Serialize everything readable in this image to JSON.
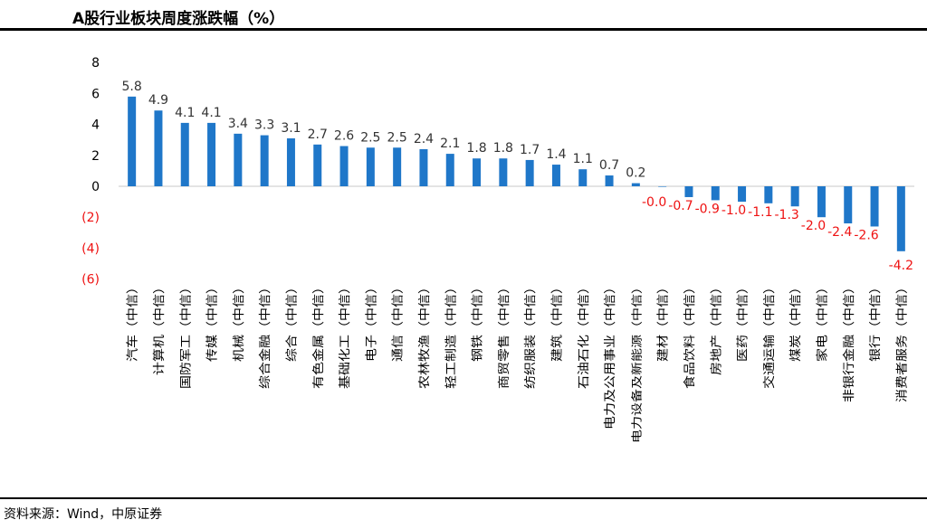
{
  "title": "A股行业板块周度涨跌幅（%）",
  "source": "资料来源：Wind，中原证券",
  "colors": {
    "positive_bar": "#1f77c9",
    "negative_bar": "#1f77c9",
    "negative_text": "#ee1111"
  },
  "chart_data": {
    "type": "bar",
    "title": "A股行业板块周度涨跌幅（%）",
    "xlabel": "",
    "ylabel": "",
    "ylim": [
      -6,
      8
    ],
    "yticks": [
      8,
      6,
      4,
      2,
      0,
      -2,
      -4,
      -6
    ],
    "ytick_labels": [
      "8",
      "6",
      "4",
      "2",
      "0",
      "(2)",
      "(4)",
      "(6)"
    ],
    "grid": false,
    "legend": "none",
    "categories": [
      "汽车(中信)",
      "计算机(中信)",
      "国防军工(中信)",
      "传媒(中信)",
      "机械(中信)",
      "综合金融(中信)",
      "综合(中信)",
      "有色金属(中信)",
      "基础化工(中信)",
      "电子(中信)",
      "通信(中信)",
      "农林牧渔(中信)",
      "轻工制造(中信)",
      "钢铁(中信)",
      "商贸零售(中信)",
      "纺织服装(中信)",
      "建筑(中信)",
      "石油石化(中信)",
      "电力及公用事业(中信)",
      "电力设备及新能源(中信)",
      "建材(中信)",
      "食品饮料(中信)",
      "房地产(中信)",
      "医药(中信)",
      "交通运输(中信)",
      "煤炭(中信)",
      "家电(中信)",
      "非银行金融(中信)",
      "银行(中信)",
      "消费者服务(中信)"
    ],
    "values": [
      5.8,
      4.9,
      4.1,
      4.1,
      3.4,
      3.3,
      3.1,
      2.7,
      2.6,
      2.5,
      2.5,
      2.4,
      2.1,
      1.8,
      1.8,
      1.7,
      1.4,
      1.1,
      0.7,
      0.2,
      -0.02,
      -0.7,
      -0.9,
      -1.0,
      -1.1,
      -1.3,
      -2.0,
      -2.4,
      -2.6,
      -4.2
    ],
    "value_labels": [
      "5.8",
      "4.9",
      "4.1",
      "4.1",
      "3.4",
      "3.3",
      "3.1",
      "2.7",
      "2.6",
      "2.5",
      "2.5",
      "2.4",
      "2.1",
      "1.8",
      "1.8",
      "1.7",
      "1.4",
      "1.1",
      "0.7",
      "0.2",
      "-0.0",
      "-0.7",
      "-0.9",
      "-1.0",
      "-1.1",
      "-1.3",
      "-2.0",
      "-2.4",
      "-2.6",
      "-4.2"
    ]
  }
}
